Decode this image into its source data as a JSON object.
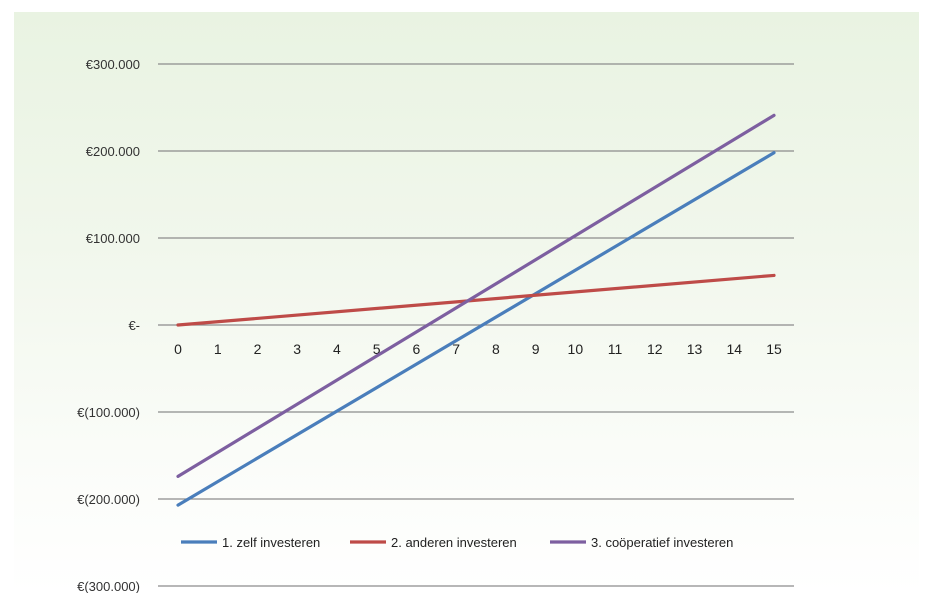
{
  "chart_data": {
    "type": "line",
    "title": "",
    "xlabel": "",
    "ylabel": "",
    "x": [
      0,
      15
    ],
    "x_ticks": [
      "0",
      "1",
      "2",
      "3",
      "4",
      "5",
      "6",
      "7",
      "8",
      "9",
      "10",
      "11",
      "12",
      "13",
      "14",
      "15"
    ],
    "ylim": [
      -300000,
      300000
    ],
    "y_ticks": [
      {
        "value": 300000,
        "label": "€300.000"
      },
      {
        "value": 200000,
        "label": "€200.000"
      },
      {
        "value": 100000,
        "label": "€100.000"
      },
      {
        "value": 0,
        "label": "€-"
      },
      {
        "value": -100000,
        "label": "€(100.000)"
      },
      {
        "value": -200000,
        "label": "€(200.000)"
      },
      {
        "value": -300000,
        "label": "€(300.000)"
      }
    ],
    "grid": true,
    "legend_position": "bottom",
    "series": [
      {
        "name": "1. zelf investeren",
        "color": "#4a7ebb",
        "values": [
          -207000,
          198000
        ]
      },
      {
        "name": "2. anderen investeren",
        "color": "#be4b48",
        "values": [
          0,
          57000
        ]
      },
      {
        "name": "3. coöperatief investeren",
        "color": "#7d5fa0",
        "values": [
          -174000,
          241000
        ]
      }
    ]
  }
}
